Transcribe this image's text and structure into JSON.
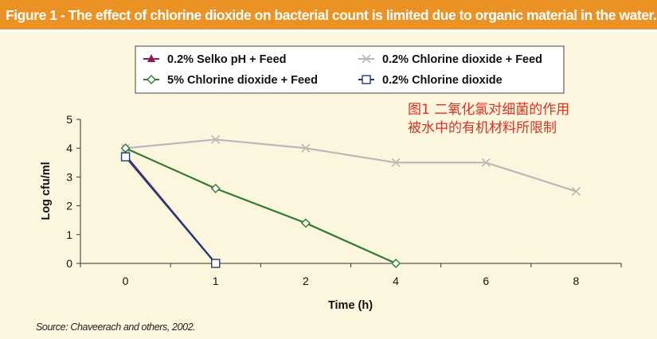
{
  "header": {
    "title": "Figure 1 - The effect of chlorine dioxide on bacterial count is limited due to organic material in the water."
  },
  "annotation_cn": {
    "line1": "图1  二氧化氯对细菌的作用",
    "line2": "被水中的有机材料所限制"
  },
  "source": "Source: Chaveerach and others, 2002.",
  "colors": {
    "banner": "#ea9324",
    "background": "#fdf6de",
    "selko": "#8b1a5b",
    "cd5": "#2e7d32",
    "cd02feed": "#b8b8b8",
    "cd02": "#1f3a7a",
    "annotation": "#e03020"
  },
  "chart_data": {
    "type": "line",
    "title": "Figure 1 - The effect of chlorine dioxide on bacterial count is limited due to organic material in the water.",
    "xlabel": "Time (h)",
    "ylabel": "Log cfu/ml",
    "categories": [
      "0",
      "1",
      "2",
      "4",
      "6",
      "8"
    ],
    "ylim": [
      0,
      5
    ],
    "yticks": [
      "0",
      "1",
      "2",
      "3",
      "4",
      "5"
    ],
    "legend_position": "top",
    "series": [
      {
        "name": "0.2% Selko pH + Feed",
        "marker": "triangle",
        "color": "#8b1a5b",
        "points": [
          [
            0,
            3.75
          ],
          [
            1,
            0
          ]
        ]
      },
      {
        "name": "0.2% Chlorine dioxide + Feed",
        "marker": "x",
        "color": "#b8b8b8",
        "points": [
          [
            0,
            4.0
          ],
          [
            1,
            4.3
          ],
          [
            2,
            4.0
          ],
          [
            3,
            3.5
          ],
          [
            4,
            3.5
          ],
          [
            5,
            2.5
          ]
        ]
      },
      {
        "name": "5% Chlorine dioxide + Feed",
        "marker": "diamond",
        "color": "#2e7d32",
        "points": [
          [
            0,
            4.0
          ],
          [
            1,
            2.6
          ],
          [
            2,
            1.4
          ],
          [
            3,
            0
          ]
        ]
      },
      {
        "name": "0.2% Chlorine dioxide",
        "marker": "square",
        "color": "#1f3a7a",
        "points": [
          [
            0,
            3.7
          ],
          [
            1,
            0
          ]
        ]
      }
    ]
  }
}
